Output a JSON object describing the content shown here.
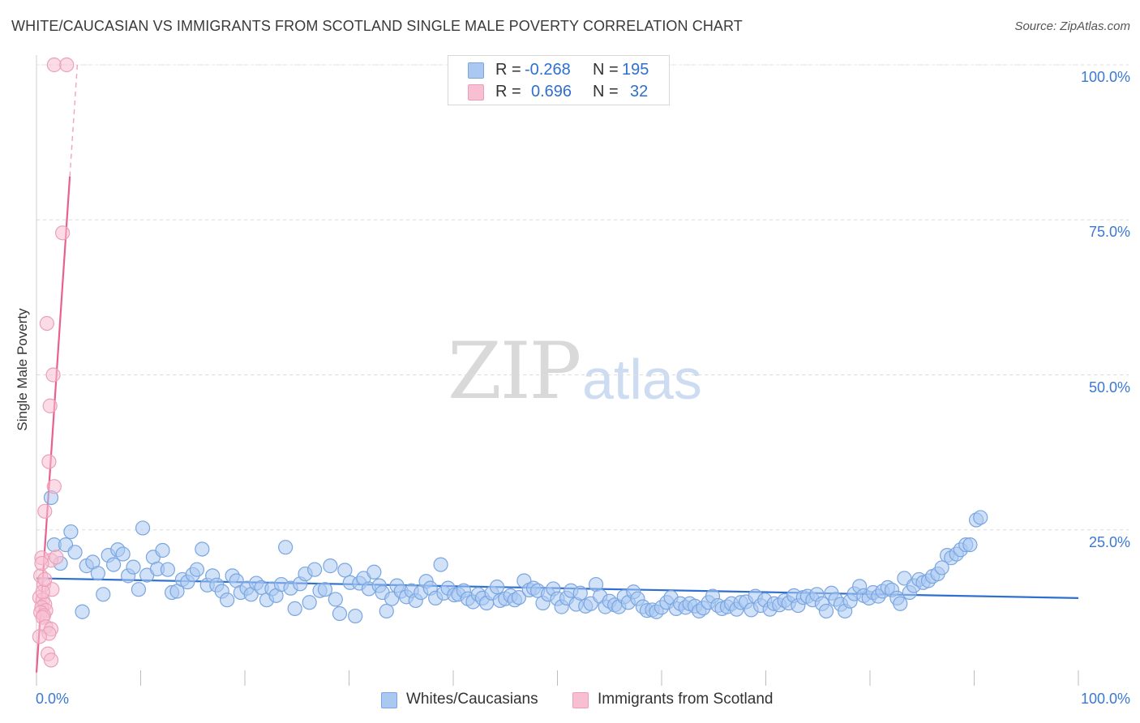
{
  "title": "WHITE/CAUCASIAN VS IMMIGRANTS FROM SCOTLAND SINGLE MALE POVERTY CORRELATION CHART",
  "source": "Source: ZipAtlas.com",
  "watermark": {
    "zip": "ZIP",
    "atlas": "atlas"
  },
  "legend": {
    "r_label": "R =",
    "n_label": "N =",
    "rows": [
      {
        "r": "-0.268",
        "n": "195",
        "color": "#aac8f2"
      },
      {
        "r": "0.696",
        "n": "32",
        "color": "#f7bfd1"
      }
    ]
  },
  "chart_data": {
    "type": "scatter",
    "title": "WHITE/CAUCASIAN VS IMMIGRANTS FROM SCOTLAND SINGLE MALE POVERTY CORRELATION CHART",
    "xlabel": "",
    "ylabel": "Single Male Poverty",
    "xlim": [
      0,
      100
    ],
    "ylim": [
      0,
      100
    ],
    "x_tick_labels": [
      "0.0%",
      "100.0%"
    ],
    "y_tick_labels": [
      "100.0%",
      "75.0%",
      "50.0%",
      "25.0%"
    ],
    "y_ticks": [
      100,
      75,
      50,
      25
    ],
    "grid": true,
    "legend_position": "bottom-center",
    "series": [
      {
        "name": "Whites/Caucasians",
        "color": "#aac8f2",
        "stroke": "#7aa6e0",
        "trend": {
          "x": [
            0,
            100
          ],
          "y": [
            17.2,
            14.0
          ],
          "color": "#2f6fd0"
        },
        "points": [
          [
            1.4,
            30.2
          ],
          [
            1.7,
            22.6
          ],
          [
            2.3,
            19.6
          ],
          [
            2.8,
            22.6
          ],
          [
            3.3,
            24.7
          ],
          [
            3.7,
            21.4
          ],
          [
            4.4,
            11.8
          ],
          [
            4.8,
            19.2
          ],
          [
            5.4,
            19.8
          ],
          [
            5.9,
            18.0
          ],
          [
            6.4,
            14.6
          ],
          [
            6.9,
            20.9
          ],
          [
            7.4,
            19.4
          ],
          [
            7.8,
            21.8
          ],
          [
            8.3,
            21.1
          ],
          [
            8.8,
            17.6
          ],
          [
            9.3,
            19.0
          ],
          [
            9.8,
            15.4
          ],
          [
            10.2,
            25.3
          ],
          [
            10.6,
            17.7
          ],
          [
            11.2,
            20.6
          ],
          [
            11.6,
            18.7
          ],
          [
            12.1,
            21.7
          ],
          [
            12.6,
            18.6
          ],
          [
            13.0,
            14.9
          ],
          [
            13.5,
            15.1
          ],
          [
            14.0,
            17.0
          ],
          [
            14.5,
            16.6
          ],
          [
            15.0,
            17.8
          ],
          [
            15.4,
            18.6
          ],
          [
            15.9,
            21.9
          ],
          [
            16.4,
            16.1
          ],
          [
            16.9,
            17.6
          ],
          [
            17.3,
            16.1
          ],
          [
            17.8,
            15.1
          ],
          [
            18.3,
            13.7
          ],
          [
            18.8,
            17.6
          ],
          [
            19.2,
            16.8
          ],
          [
            19.6,
            14.9
          ],
          [
            20.2,
            15.6
          ],
          [
            20.6,
            14.6
          ],
          [
            21.1,
            16.4
          ],
          [
            21.6,
            15.7
          ],
          [
            22.1,
            13.7
          ],
          [
            22.6,
            15.5
          ],
          [
            23.0,
            14.4
          ],
          [
            23.5,
            16.2
          ],
          [
            23.9,
            22.2
          ],
          [
            24.4,
            15.6
          ],
          [
            24.8,
            12.3
          ],
          [
            25.3,
            16.3
          ],
          [
            25.8,
            17.9
          ],
          [
            26.2,
            13.3
          ],
          [
            26.7,
            18.6
          ],
          [
            27.2,
            15.2
          ],
          [
            27.7,
            15.4
          ],
          [
            28.2,
            19.2
          ],
          [
            28.7,
            13.8
          ],
          [
            29.1,
            11.5
          ],
          [
            29.6,
            18.5
          ],
          [
            30.1,
            16.5
          ],
          [
            30.6,
            11.1
          ],
          [
            31.0,
            16.4
          ],
          [
            31.4,
            17.2
          ],
          [
            31.9,
            15.5
          ],
          [
            32.4,
            18.2
          ],
          [
            32.9,
            16.0
          ],
          [
            33.2,
            14.9
          ],
          [
            33.6,
            11.9
          ],
          [
            34.1,
            13.9
          ],
          [
            34.6,
            16.0
          ],
          [
            35.0,
            15.1
          ],
          [
            35.5,
            14.2
          ],
          [
            36.0,
            15.2
          ],
          [
            36.4,
            13.6
          ],
          [
            36.9,
            14.9
          ],
          [
            37.4,
            16.7
          ],
          [
            37.8,
            15.6
          ],
          [
            38.3,
            14.0
          ],
          [
            38.8,
            19.4
          ],
          [
            39.1,
            14.8
          ],
          [
            39.5,
            15.6
          ],
          [
            40.1,
            14.5
          ],
          [
            40.5,
            14.6
          ],
          [
            41.0,
            15.2
          ],
          [
            41.4,
            13.9
          ],
          [
            41.9,
            13.4
          ],
          [
            42.4,
            14.6
          ],
          [
            42.8,
            14.0
          ],
          [
            43.2,
            13.2
          ],
          [
            43.7,
            14.8
          ],
          [
            44.2,
            15.8
          ],
          [
            44.5,
            13.6
          ],
          [
            45.0,
            13.9
          ],
          [
            45.5,
            14.4
          ],
          [
            45.9,
            13.7
          ],
          [
            46.3,
            14.1
          ],
          [
            46.8,
            16.8
          ],
          [
            47.3,
            15.3
          ],
          [
            47.7,
            15.6
          ],
          [
            48.1,
            15.2
          ],
          [
            48.6,
            13.2
          ],
          [
            49.1,
            14.6
          ],
          [
            49.6,
            15.5
          ],
          [
            50.0,
            13.9
          ],
          [
            50.4,
            12.6
          ],
          [
            50.9,
            14.0
          ],
          [
            51.3,
            15.2
          ],
          [
            51.8,
            13.0
          ],
          [
            52.2,
            14.8
          ],
          [
            52.7,
            12.7
          ],
          [
            53.2,
            13.1
          ],
          [
            53.7,
            16.2
          ],
          [
            54.1,
            14.3
          ],
          [
            54.6,
            12.6
          ],
          [
            55.0,
            13.5
          ],
          [
            55.5,
            12.9
          ],
          [
            55.9,
            12.6
          ],
          [
            56.4,
            14.2
          ],
          [
            56.8,
            13.3
          ],
          [
            57.3,
            15.0
          ],
          [
            57.7,
            13.9
          ],
          [
            58.2,
            12.6
          ],
          [
            58.6,
            12.0
          ],
          [
            59.1,
            12.1
          ],
          [
            59.5,
            11.8
          ],
          [
            60.0,
            12.5
          ],
          [
            60.5,
            13.3
          ],
          [
            60.9,
            14.1
          ],
          [
            61.4,
            12.3
          ],
          [
            61.8,
            13.1
          ],
          [
            62.3,
            12.5
          ],
          [
            62.7,
            13.1
          ],
          [
            63.2,
            12.7
          ],
          [
            63.6,
            11.9
          ],
          [
            64.0,
            12.4
          ],
          [
            64.5,
            13.3
          ],
          [
            64.9,
            14.3
          ],
          [
            65.4,
            12.8
          ],
          [
            65.8,
            12.3
          ],
          [
            66.3,
            12.6
          ],
          [
            66.7,
            13.1
          ],
          [
            67.2,
            12.2
          ],
          [
            67.6,
            13.3
          ],
          [
            68.1,
            13.4
          ],
          [
            68.6,
            12.1
          ],
          [
            69.0,
            14.3
          ],
          [
            69.5,
            12.8
          ],
          [
            69.9,
            13.7
          ],
          [
            70.4,
            12.2
          ],
          [
            70.8,
            13.1
          ],
          [
            71.3,
            12.9
          ],
          [
            71.8,
            13.6
          ],
          [
            72.2,
            13.2
          ],
          [
            72.7,
            14.4
          ],
          [
            73.1,
            12.8
          ],
          [
            73.6,
            14.1
          ],
          [
            74.0,
            14.3
          ],
          [
            74.5,
            13.7
          ],
          [
            74.9,
            14.6
          ],
          [
            75.4,
            13.1
          ],
          [
            75.8,
            11.9
          ],
          [
            76.3,
            14.8
          ],
          [
            76.7,
            13.8
          ],
          [
            77.2,
            13.0
          ],
          [
            77.6,
            11.9
          ],
          [
            78.1,
            13.5
          ],
          [
            78.5,
            14.7
          ],
          [
            79.0,
            15.9
          ],
          [
            79.4,
            14.4
          ],
          [
            79.9,
            14.0
          ],
          [
            80.3,
            14.9
          ],
          [
            80.8,
            14.3
          ],
          [
            81.2,
            15.1
          ],
          [
            81.7,
            15.7
          ],
          [
            82.1,
            15.3
          ],
          [
            82.6,
            14.0
          ],
          [
            82.9,
            13.1
          ],
          [
            83.3,
            17.2
          ],
          [
            83.8,
            14.9
          ],
          [
            84.2,
            16.0
          ],
          [
            84.7,
            17.0
          ],
          [
            85.1,
            16.5
          ],
          [
            85.6,
            16.8
          ],
          [
            86.0,
            17.5
          ],
          [
            86.5,
            17.9
          ],
          [
            86.9,
            18.9
          ],
          [
            87.4,
            20.9
          ],
          [
            87.8,
            20.5
          ],
          [
            88.3,
            21.1
          ],
          [
            88.7,
            21.8
          ],
          [
            89.2,
            22.6
          ],
          [
            89.6,
            22.6
          ],
          [
            90.2,
            26.6
          ],
          [
            90.6,
            27.0
          ]
        ]
      },
      {
        "name": "Immigrants from Scotland",
        "color": "#f7bfd1",
        "stroke": "#eba0b9",
        "trend": {
          "x": [
            0,
            3.2
          ],
          "y": [
            2.0,
            82.0
          ],
          "ext_y": 100,
          "color": "#e8608c"
        },
        "points": [
          [
            1.7,
            100.0
          ],
          [
            2.9,
            100.0
          ],
          [
            2.5,
            72.9
          ],
          [
            1.0,
            58.3
          ],
          [
            1.6,
            50.0
          ],
          [
            1.3,
            45.0
          ],
          [
            1.2,
            36.0
          ],
          [
            1.7,
            32.0
          ],
          [
            0.8,
            28.0
          ],
          [
            1.4,
            20.1
          ],
          [
            1.9,
            20.6
          ],
          [
            0.5,
            20.5
          ],
          [
            0.4,
            17.6
          ],
          [
            0.7,
            16.2
          ],
          [
            1.5,
            15.4
          ],
          [
            0.3,
            14.1
          ],
          [
            0.6,
            13.7
          ],
          [
            0.8,
            13.0
          ],
          [
            0.5,
            12.5
          ],
          [
            0.9,
            12.0
          ],
          [
            0.4,
            11.7
          ],
          [
            0.7,
            11.2
          ],
          [
            0.6,
            10.9
          ],
          [
            0.9,
            9.4
          ],
          [
            1.4,
            9.0
          ],
          [
            1.2,
            8.3
          ],
          [
            0.3,
            7.8
          ],
          [
            1.1,
            5.0
          ],
          [
            1.4,
            4.0
          ],
          [
            0.6,
            15.0
          ],
          [
            0.8,
            17.0
          ],
          [
            0.5,
            19.6
          ]
        ]
      }
    ]
  },
  "bottom_legend": [
    "Whites/Caucasians",
    "Immigrants from Scotland"
  ]
}
